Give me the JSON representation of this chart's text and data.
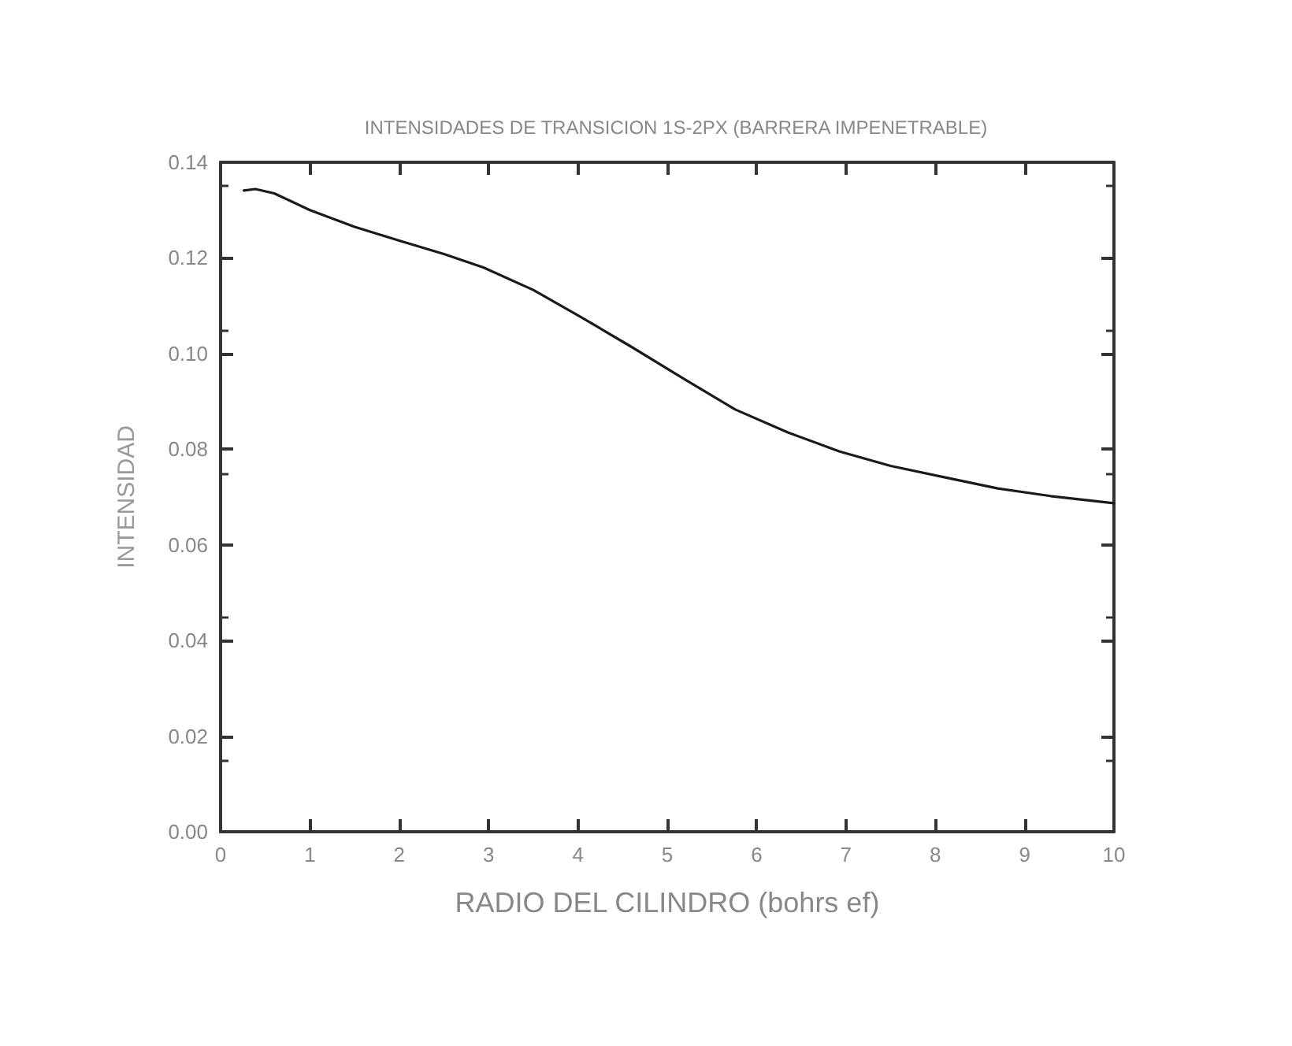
{
  "chart_data": {
    "type": "line",
    "title": "INTENSIDADES DE TRANSICION 1S-2PX (BARRERA IMPENETRABLE)",
    "xlabel": "RADIO DEL CILINDRO (bohrs ef)",
    "ylabel": "INTENSIDAD",
    "series": [
      {
        "color": "#1a1a1a",
        "x": [
          0.26,
          0.39,
          0.6,
          1.0,
          1.5,
          2.0,
          2.5,
          2.94,
          3.5,
          4.0,
          4.59,
          5.17,
          5.76,
          6.35,
          6.93,
          7.5,
          8.11,
          8.7,
          9.29,
          10
        ],
        "values": [
          0.1341,
          0.1344,
          0.1335,
          0.13,
          0.1265,
          0.1236,
          0.1208,
          0.118,
          0.1133,
          0.108,
          0.1015,
          0.0949,
          0.0883,
          0.0835,
          0.0795,
          0.0765,
          0.0741,
          0.0718,
          0.0702,
          0.0687
        ]
      }
    ],
    "xlim": [
      0,
      10
    ],
    "xticks": [
      0,
      1,
      2,
      3,
      4,
      5,
      6,
      7,
      8,
      9,
      10
    ],
    "ylim": [
      0,
      0.14
    ],
    "yticks": [
      {
        "value": 0,
        "label": "0.00"
      },
      {
        "value": 0.02,
        "label": "0.02"
      },
      {
        "value": 0.04,
        "label": "0.04"
      },
      {
        "value": 0.06,
        "label": "0.06"
      },
      {
        "value": 0.08,
        "label": "0.08"
      },
      {
        "value": 0.1,
        "label": "0.10"
      },
      {
        "value": 0.12,
        "label": "0.12"
      },
      {
        "value": 0.14,
        "label": "0.14"
      }
    ],
    "grid": false,
    "marker": "none",
    "line_style": "solid"
  }
}
